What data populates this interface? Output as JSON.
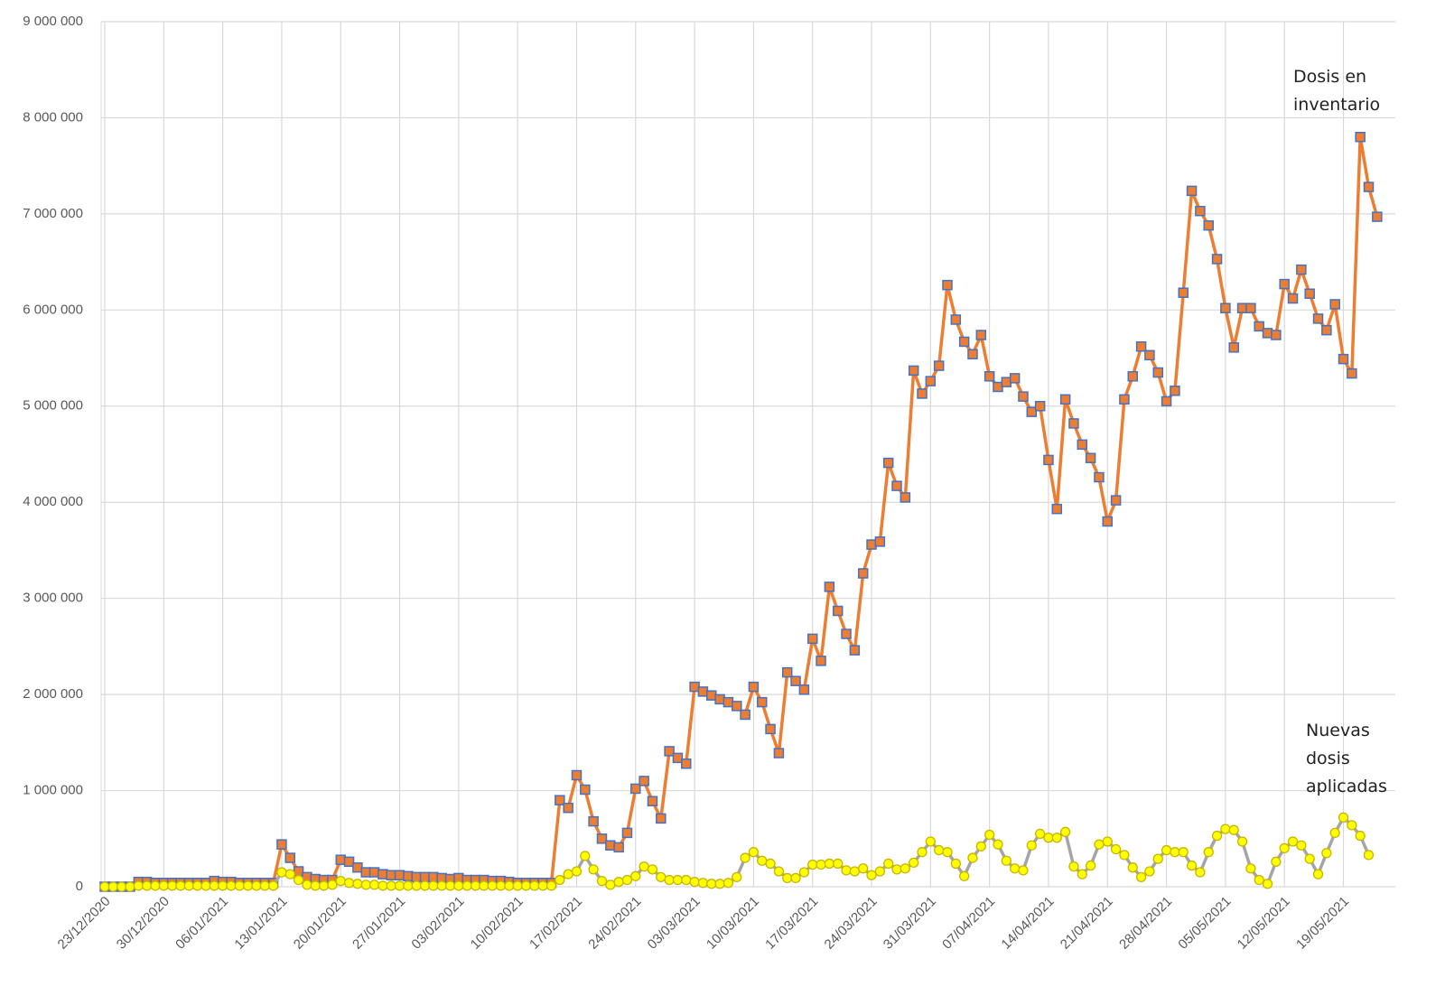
{
  "chart_data": {
    "type": "line",
    "categories": [
      "23/12/2020",
      null,
      null,
      null,
      null,
      null,
      null,
      "30/12/2020",
      null,
      null,
      null,
      null,
      null,
      null,
      "06/01/2021",
      null,
      null,
      null,
      null,
      null,
      null,
      "13/01/2021",
      null,
      null,
      null,
      null,
      null,
      null,
      "20/01/2021",
      null,
      null,
      null,
      null,
      null,
      null,
      "27/01/2021",
      null,
      null,
      null,
      null,
      null,
      null,
      "03/02/2021",
      null,
      null,
      null,
      null,
      null,
      null,
      "10/02/2021",
      null,
      null,
      null,
      null,
      null,
      null,
      "17/02/2021",
      null,
      null,
      null,
      null,
      null,
      null,
      "24/02/2021",
      null,
      null,
      null,
      null,
      null,
      null,
      "03/03/2021",
      null,
      null,
      null,
      null,
      null,
      null,
      "10/03/2021",
      null,
      null,
      null,
      null,
      null,
      null,
      "17/03/2021",
      null,
      null,
      null,
      null,
      null,
      null,
      "24/03/2021",
      null,
      null,
      null,
      null,
      null,
      null,
      "31/03/2021",
      null,
      null,
      null,
      null,
      null,
      null,
      "07/04/2021",
      null,
      null,
      null,
      null,
      null,
      null,
      "14/04/2021",
      null,
      null,
      null,
      null,
      null,
      null,
      "21/04/2021",
      null,
      null,
      null,
      null,
      null,
      null,
      "28/04/2021",
      null,
      null,
      null,
      null,
      null,
      null,
      "05/05/2021",
      null,
      null,
      null,
      null,
      null,
      null,
      "12/05/2021",
      null,
      null,
      null,
      null,
      null,
      null,
      "19/05/2021",
      null,
      null,
      null,
      null
    ],
    "series": [
      {
        "name": "Dosis en inventario",
        "color": "#ed7d31",
        "marker": "square",
        "marker_edge": "#4472c4",
        "line_color": "#ed7d31",
        "values": [
          0,
          0,
          0,
          0,
          50000,
          50000,
          40000,
          40000,
          40000,
          40000,
          40000,
          40000,
          40000,
          60000,
          50000,
          50000,
          40000,
          40000,
          40000,
          40000,
          40000,
          440000,
          300000,
          160000,
          100000,
          80000,
          70000,
          70000,
          280000,
          260000,
          200000,
          150000,
          150000,
          130000,
          120000,
          120000,
          110000,
          100000,
          100000,
          100000,
          90000,
          80000,
          90000,
          70000,
          70000,
          70000,
          60000,
          60000,
          50000,
          40000,
          40000,
          40000,
          40000,
          40000,
          900000,
          820000,
          1160000,
          1010000,
          680000,
          500000,
          430000,
          410000,
          560000,
          1020000,
          1100000,
          890000,
          710000,
          1410000,
          1340000,
          1280000,
          2080000,
          2030000,
          1990000,
          1950000,
          1920000,
          1880000,
          1790000,
          2080000,
          1920000,
          1640000,
          1390000,
          2230000,
          2140000,
          2050000,
          2580000,
          2350000,
          3120000,
          2870000,
          2630000,
          2460000,
          3260000,
          3560000,
          3590000,
          4410000,
          4170000,
          4050000,
          5370000,
          5130000,
          5260000,
          5420000,
          6260000,
          5900000,
          5670000,
          5540000,
          5740000,
          5310000,
          5200000,
          5250000,
          5290000,
          5100000,
          4940000,
          5000000,
          4440000,
          3930000,
          5070000,
          4820000,
          4600000,
          4460000,
          4260000,
          3800000,
          4020000,
          5070000,
          5310000,
          5620000,
          5530000,
          5350000,
          5050000,
          5160000,
          6180000,
          7240000,
          7030000,
          6880000,
          6530000,
          6020000,
          5610000,
          6020000,
          6020000,
          5830000,
          5760000,
          5740000,
          6270000,
          6120000,
          6420000,
          6170000,
          5910000,
          5790000,
          6060000,
          5490000,
          5340000,
          7800000,
          7280000,
          6970000
        ]
      },
      {
        "name": "Nuevas dosis aplicadas",
        "color": "#ffff00",
        "marker": "circle",
        "marker_edge": "#c8b400",
        "line_color": "#a5a5a5",
        "values": [
          0,
          0,
          0,
          0,
          10000,
          10000,
          10000,
          10000,
          10000,
          10000,
          10000,
          10000,
          10000,
          10000,
          10000,
          10000,
          10000,
          10000,
          10000,
          10000,
          10000,
          150000,
          130000,
          70000,
          20000,
          10000,
          10000,
          20000,
          60000,
          40000,
          30000,
          20000,
          20000,
          10000,
          10000,
          10000,
          10000,
          10000,
          10000,
          10000,
          10000,
          10000,
          10000,
          10000,
          10000,
          10000,
          10000,
          10000,
          10000,
          10000,
          10000,
          10000,
          10000,
          10000,
          70000,
          130000,
          160000,
          320000,
          180000,
          60000,
          20000,
          50000,
          70000,
          110000,
          210000,
          180000,
          100000,
          70000,
          70000,
          70000,
          50000,
          40000,
          30000,
          30000,
          40000,
          100000,
          300000,
          360000,
          270000,
          240000,
          160000,
          90000,
          90000,
          150000,
          230000,
          230000,
          240000,
          240000,
          170000,
          160000,
          190000,
          120000,
          160000,
          240000,
          180000,
          190000,
          250000,
          360000,
          470000,
          380000,
          360000,
          240000,
          110000,
          300000,
          420000,
          540000,
          440000,
          270000,
          190000,
          170000,
          430000,
          550000,
          510000,
          510000,
          570000,
          210000,
          130000,
          220000,
          440000,
          470000,
          390000,
          330000,
          200000,
          100000,
          160000,
          290000,
          380000,
          360000,
          360000,
          220000,
          150000,
          360000,
          530000,
          600000,
          590000,
          470000,
          190000,
          70000,
          30000,
          260000,
          400000,
          470000,
          430000,
          290000,
          130000,
          350000,
          560000,
          720000,
          640000,
          530000,
          330000,
          null
        ]
      }
    ],
    "ylim": [
      0,
      9000000
    ],
    "yticks": [
      0,
      {
        "value": 1000000,
        "label": "1 000 000"
      },
      {
        "value": 2000000,
        "label": "2 000 000"
      },
      {
        "value": 3000000,
        "label": "3 000 000"
      },
      {
        "value": 4000000,
        "label": "4 000 000"
      },
      {
        "value": 5000000,
        "label": "5 000 000"
      },
      {
        "value": 6000000,
        "label": "6 000 000"
      },
      {
        "value": 7000000,
        "label": "7 000 000"
      },
      {
        "value": 8000000,
        "label": "8 000 000"
      },
      {
        "value": 9000000,
        "label": "9 000 000"
      }
    ],
    "grid": true
  }
}
